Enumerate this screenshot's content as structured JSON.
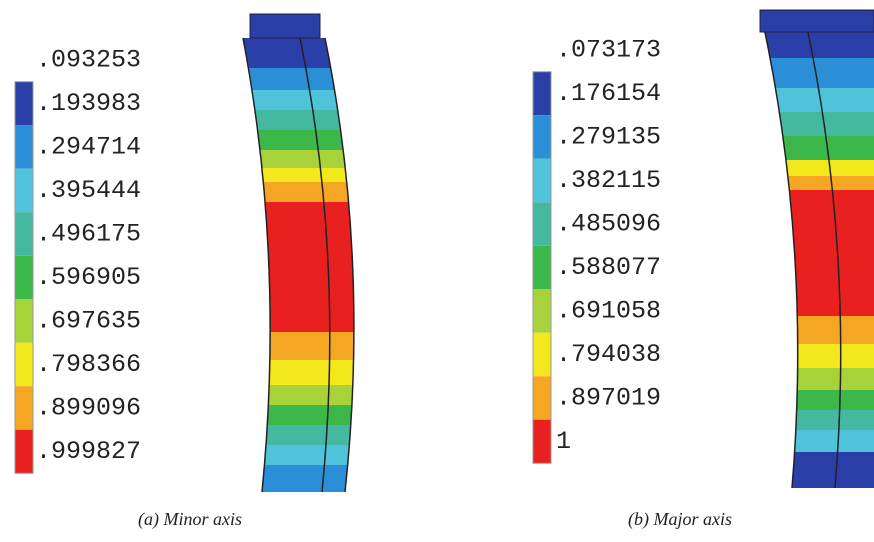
{
  "panels": [
    {
      "legend": [
        ".093253",
        ".193983",
        ".294714",
        ".395444",
        ".496175",
        ".596905",
        ".697635",
        ".798366",
        ".899096",
        ".999827"
      ],
      "caption": "(a)  Minor axis"
    },
    {
      "legend": [
        ".073173",
        ".176154",
        ".279135",
        ".382115",
        ".485096",
        ".588077",
        ".691058",
        ".794038",
        ".897019",
        "1"
      ],
      "caption": "(b)  Major axis"
    }
  ]
}
